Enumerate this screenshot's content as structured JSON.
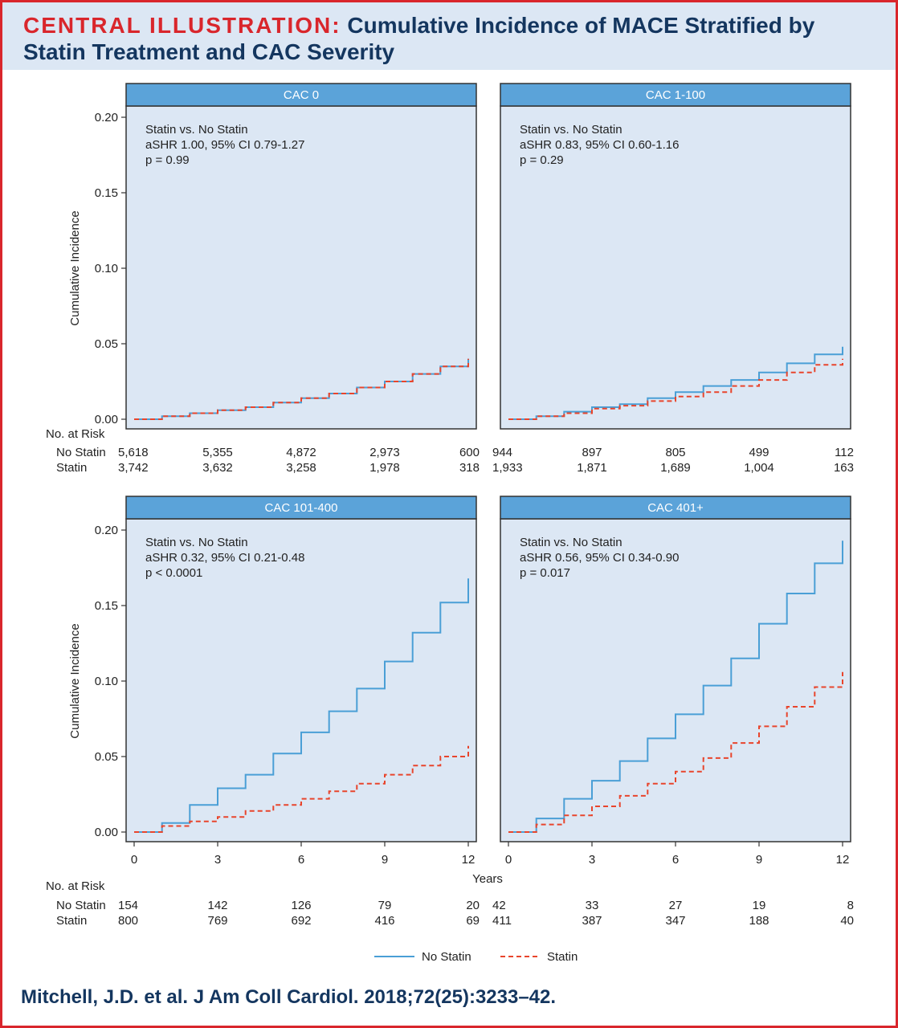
{
  "header": {
    "title_prefix": "CENTRAL ILLUSTRATION:",
    "title_main": "Cumulative Incidence of MACE Stratified by Statin Treatment and CAC Severity"
  },
  "citation": "Mitchell, J.D. et al. J Am Coll Cardiol. 2018;72(25):3233–42.",
  "colors": {
    "panel_bg": "#dce7f4",
    "strip_bg": "#5ba3d9",
    "no_statin": "#4a9fd6",
    "statin": "#e8452c",
    "frame": "#d9262c",
    "title_text": "#14365f"
  },
  "chart_data": {
    "type": "line",
    "chart_kind": "cumulative incidence step curves, 2x2 faceted panels",
    "xlabel": "Years",
    "ylabel": "Cumulative Incidence",
    "xlim": [
      0,
      12
    ],
    "ylim": [
      0,
      0.2
    ],
    "x_ticks": [
      "0",
      "3",
      "6",
      "9",
      "12"
    ],
    "y_ticks": [
      "0.00",
      "0.05",
      "0.10",
      "0.15",
      "0.20"
    ],
    "grid": false,
    "legend": {
      "placement": "bottom-center",
      "entries": [
        {
          "name": "No Statin",
          "style": "solid",
          "color": "#4a9fd6"
        },
        {
          "name": "Statin",
          "style": "dashed",
          "color": "#e8452c"
        }
      ]
    },
    "risk_table_header": "No. at Risk",
    "risk_table_rows": [
      "No Statin",
      "Statin"
    ],
    "panels": [
      {
        "label": "CAC 0",
        "stats": [
          "Statin vs. No Statin",
          "aSHR 1.00, 95% CI 0.79-1.27",
          "p = 0.99"
        ],
        "series": [
          {
            "name": "No Statin",
            "x": [
              0,
              1,
              2,
              3,
              4,
              5,
              6,
              7,
              8,
              9,
              10,
              11,
              12
            ],
            "y": [
              0,
              0.002,
              0.004,
              0.006,
              0.008,
              0.011,
              0.014,
              0.017,
              0.021,
              0.025,
              0.03,
              0.035,
              0.04
            ]
          },
          {
            "name": "Statin",
            "x": [
              0,
              1,
              2,
              3,
              4,
              5,
              6,
              7,
              8,
              9,
              10,
              11,
              12
            ],
            "y": [
              0,
              0.002,
              0.004,
              0.006,
              0.008,
              0.011,
              0.014,
              0.017,
              0.021,
              0.025,
              0.03,
              0.035,
              0.04
            ]
          }
        ],
        "risk": {
          "times": [
            0,
            3,
            6,
            9,
            12
          ],
          "no_statin": [
            "5,618",
            "5,355",
            "4,872",
            "2,973",
            "600"
          ],
          "statin": [
            "3,742",
            "3,632",
            "3,258",
            "1,978",
            "318"
          ]
        }
      },
      {
        "label": "CAC 1-100",
        "stats": [
          "Statin vs. No Statin",
          "aSHR 0.83, 95% CI 0.60-1.16",
          "p = 0.29"
        ],
        "series": [
          {
            "name": "No Statin",
            "x": [
              0,
              1,
              2,
              3,
              4,
              5,
              6,
              7,
              8,
              9,
              10,
              11,
              12
            ],
            "y": [
              0,
              0.002,
              0.005,
              0.008,
              0.01,
              0.014,
              0.018,
              0.022,
              0.026,
              0.031,
              0.037,
              0.043,
              0.048
            ]
          },
          {
            "name": "Statin",
            "x": [
              0,
              1,
              2,
              3,
              4,
              5,
              6,
              7,
              8,
              9,
              10,
              11,
              12
            ],
            "y": [
              0,
              0.002,
              0.004,
              0.007,
              0.009,
              0.012,
              0.015,
              0.018,
              0.022,
              0.026,
              0.031,
              0.036,
              0.04
            ]
          }
        ],
        "risk": {
          "times": [
            0,
            3,
            6,
            9,
            12
          ],
          "no_statin": [
            "944",
            "897",
            "805",
            "499",
            "112"
          ],
          "statin": [
            "1,933",
            "1,871",
            "1,689",
            "1,004",
            "163"
          ]
        }
      },
      {
        "label": "CAC 101-400",
        "stats": [
          "Statin vs. No Statin",
          "aSHR 0.32, 95% CI 0.21-0.48",
          "p < 0.0001"
        ],
        "series": [
          {
            "name": "No Statin",
            "x": [
              0,
              1,
              2,
              3,
              4,
              5,
              6,
              7,
              8,
              9,
              10,
              11,
              12
            ],
            "y": [
              0,
              0.006,
              0.018,
              0.029,
              0.038,
              0.052,
              0.066,
              0.08,
              0.095,
              0.113,
              0.132,
              0.152,
              0.168
            ]
          },
          {
            "name": "Statin",
            "x": [
              0,
              1,
              2,
              3,
              4,
              5,
              6,
              7,
              8,
              9,
              10,
              11,
              12
            ],
            "y": [
              0,
              0.004,
              0.007,
              0.01,
              0.014,
              0.018,
              0.022,
              0.027,
              0.032,
              0.038,
              0.044,
              0.05,
              0.057
            ]
          }
        ],
        "risk": {
          "times": [
            0,
            3,
            6,
            9,
            12
          ],
          "no_statin": [
            "154",
            "142",
            "126",
            "79",
            "20"
          ],
          "statin": [
            "800",
            "769",
            "692",
            "416",
            "69"
          ]
        }
      },
      {
        "label": "CAC 401+",
        "stats": [
          "Statin vs. No Statin",
          "aSHR 0.56, 95% CI 0.34-0.90",
          "p = 0.017"
        ],
        "series": [
          {
            "name": "No Statin",
            "x": [
              0,
              1,
              2,
              3,
              4,
              5,
              6,
              7,
              8,
              9,
              10,
              11,
              12
            ],
            "y": [
              0,
              0.009,
              0.022,
              0.034,
              0.047,
              0.062,
              0.078,
              0.097,
              0.115,
              0.138,
              0.158,
              0.178,
              0.193
            ]
          },
          {
            "name": "Statin",
            "x": [
              0,
              1,
              2,
              3,
              4,
              5,
              6,
              7,
              8,
              9,
              10,
              11,
              12
            ],
            "y": [
              0,
              0.005,
              0.011,
              0.017,
              0.024,
              0.032,
              0.04,
              0.049,
              0.059,
              0.07,
              0.083,
              0.096,
              0.106
            ]
          }
        ],
        "risk": {
          "times": [
            0,
            3,
            6,
            9,
            12
          ],
          "no_statin": [
            "42",
            "33",
            "27",
            "19",
            "8"
          ],
          "statin": [
            "411",
            "387",
            "347",
            "188",
            "40"
          ]
        }
      }
    ]
  }
}
